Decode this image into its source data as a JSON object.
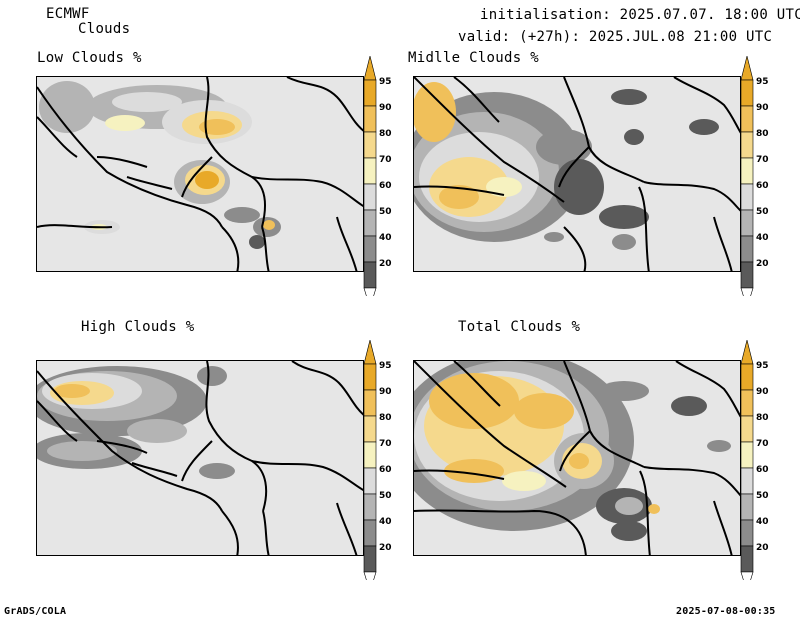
{
  "header": {
    "model": "ECMWF",
    "product": "Clouds",
    "init": "initialisation: 2025.07.07. 18:00 UTC",
    "valid": "valid: (+27h): 2025.JUL.08 21:00 UTC"
  },
  "panels": [
    {
      "id": "low",
      "title": "Low Clouds %"
    },
    {
      "id": "middle",
      "title": "Midlle Clouds %"
    },
    {
      "id": "high",
      "title": "High Clouds %"
    },
    {
      "id": "total",
      "title": "Total Clouds %"
    }
  ],
  "colorbar": {
    "levels": [
      "95",
      "90",
      "80",
      "70",
      "60",
      "50",
      "40",
      "20"
    ],
    "colors": [
      "#e8a928",
      "#f0c05a",
      "#f5d98d",
      "#f6f2c0",
      "#dcdcdc",
      "#b4b4b4",
      "#8c8c8c",
      "#5a5a5a"
    ]
  },
  "footer": {
    "left": "GrADS/COLA",
    "right": "2025-07-08-00:35"
  }
}
